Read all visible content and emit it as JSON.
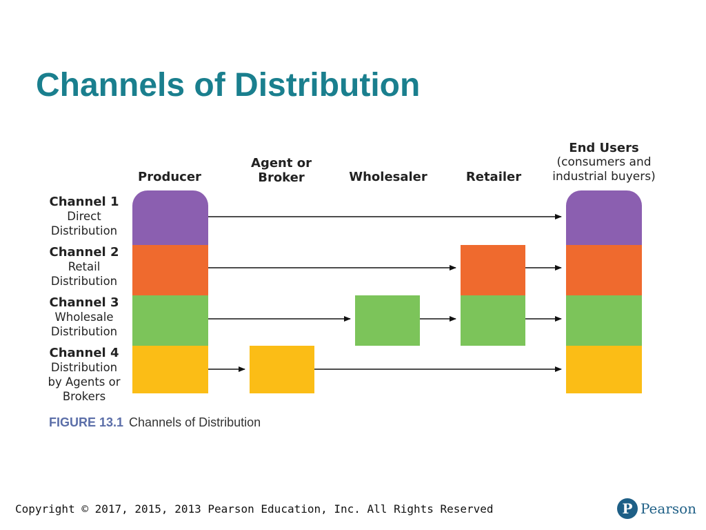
{
  "slide": {
    "title": "Channels of Distribution"
  },
  "headers": {
    "producer": "Producer",
    "agent": "Agent or\nBroker",
    "wholesaler": "Wholesaler",
    "retailer": "Retailer",
    "end_users": "End Users",
    "end_users_sub": "(consumers and\nindustrial buyers)"
  },
  "channels": [
    {
      "name": "Channel 1",
      "desc": "Direct\nDistribution",
      "color": "#8b5fb0"
    },
    {
      "name": "Channel 2",
      "desc": "Retail\nDistribution",
      "color": "#ef6a2e"
    },
    {
      "name": "Channel 3",
      "desc": "Wholesale\nDistribution",
      "color": "#7cc45a"
    },
    {
      "name": "Channel 4",
      "desc": "Distribution\nby Agents or\nBrokers",
      "color": "#fbbd16"
    }
  ],
  "caption": {
    "label": "FIGURE 13.1",
    "text": "Channels of Distribution"
  },
  "footer": {
    "copyright": "Copyright © 2017, 2015, 2013 Pearson Education, Inc. All Rights Reserved"
  },
  "brand": {
    "logo_letter": "P",
    "name": "Pearson"
  }
}
